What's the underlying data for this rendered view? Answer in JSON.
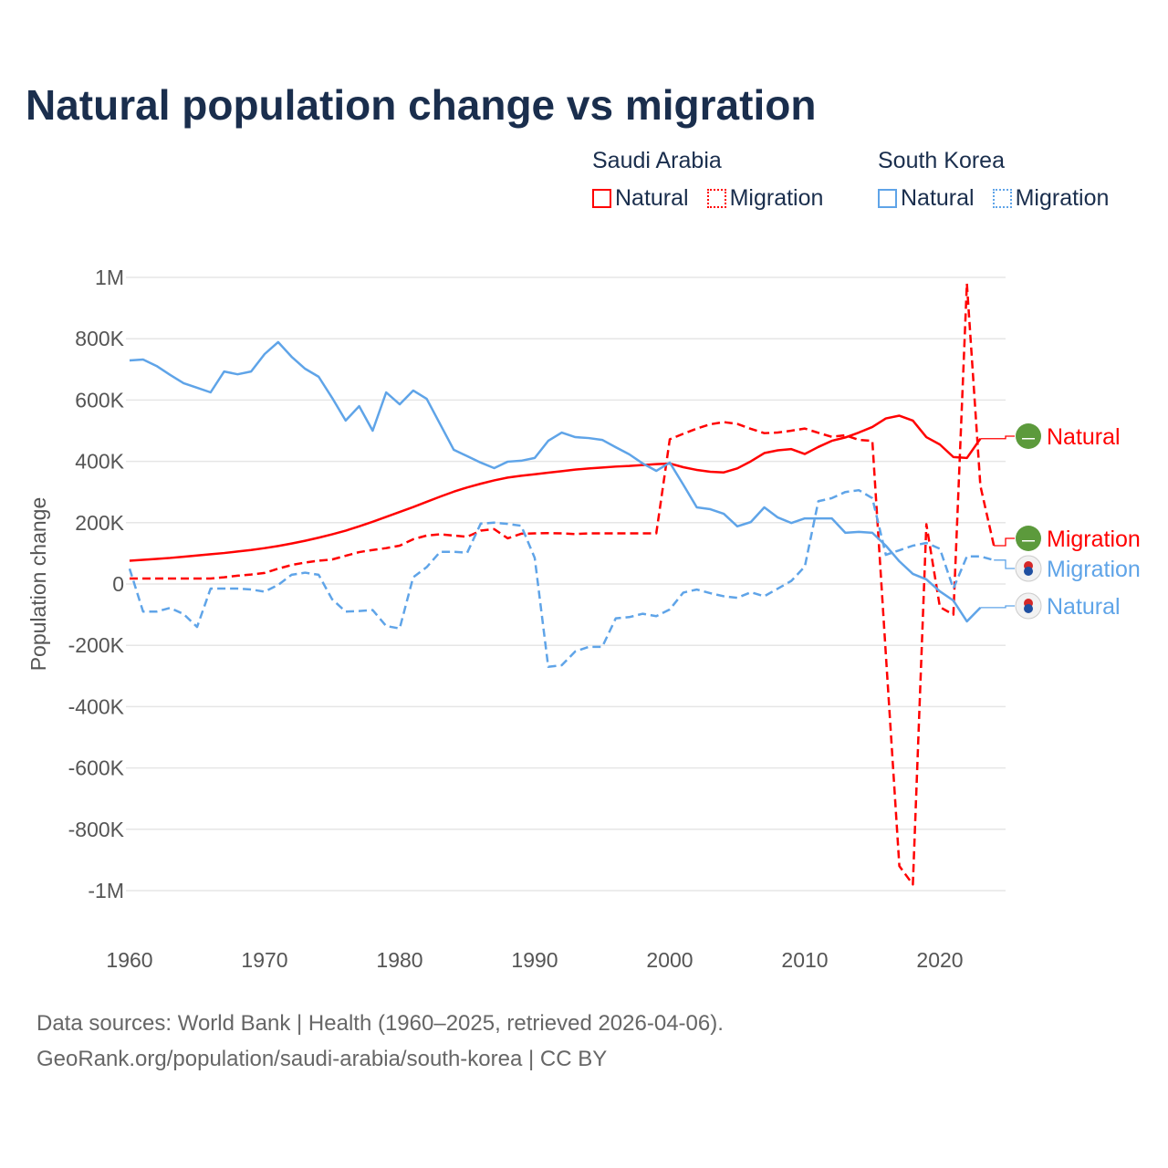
{
  "title": "Natural population change vs migration",
  "legend": {
    "groups": [
      {
        "name": "Saudi Arabia",
        "color": "#ff0000",
        "items": [
          "Natural",
          "Migration"
        ]
      },
      {
        "name": "South Korea",
        "color": "#5fa4e8",
        "items": [
          "Natural",
          "Migration"
        ]
      }
    ]
  },
  "footer": {
    "line1": "Data sources: World Bank | Health (1960–2025, retrieved 2026-04-06).",
    "line2": "GeoRank.org/population/saudi-arabia/south-korea | CC BY"
  },
  "chart_data": {
    "type": "line",
    "title": "Natural population change vs migration",
    "xlabel": "",
    "ylabel": "Population change",
    "xlim": [
      1960,
      2025
    ],
    "ylim": [
      -1000000,
      1000000
    ],
    "x_ticks": [
      1960,
      1970,
      1980,
      1990,
      2000,
      2010,
      2020
    ],
    "x_tick_labels": [
      "1960",
      "1970",
      "1980",
      "1990",
      "2000",
      "2010",
      "2020"
    ],
    "y_ticks": [
      1000000,
      800000,
      600000,
      400000,
      200000,
      0,
      -200000,
      -400000,
      -600000,
      -800000,
      -1000000
    ],
    "y_tick_labels": [
      "1M",
      "800K",
      "600K",
      "400K",
      "200K",
      "0",
      "-200K",
      "-400K",
      "-600K",
      "-800K",
      "-1M"
    ],
    "grid": true,
    "series": [
      {
        "name": "Saudi Arabia Natural",
        "label": "Natural",
        "color": "#ff0000",
        "dash": false,
        "start": 1960,
        "values": [
          76,
          79,
          82,
          85,
          89,
          93,
          97,
          101,
          106,
          111,
          117,
          124,
          132,
          141,
          151,
          162,
          174,
          188,
          203,
          219,
          235,
          251,
          268,
          285,
          301,
          315,
          327,
          338,
          347,
          353,
          358,
          363,
          368,
          373,
          377,
          380,
          383,
          385,
          388,
          391,
          393,
          381,
          372,
          366,
          364,
          377,
          400,
          427,
          436,
          440,
          424,
          447,
          467,
          478,
          494,
          512,
          540,
          549,
          533,
          479,
          455,
          414,
          411,
          474
        ]
      },
      {
        "name": "Saudi Arabia Migration",
        "label": "Migration",
        "color": "#ff0000",
        "dash": true,
        "start": 1960,
        "values": [
          18,
          18,
          18,
          18,
          18,
          18,
          18,
          22,
          27,
          31,
          36,
          50,
          62,
          70,
          76,
          80,
          92,
          104,
          111,
          117,
          125,
          146,
          158,
          162,
          158,
          154,
          174,
          179,
          149,
          164,
          165,
          166,
          165,
          163,
          165,
          165,
          165,
          165,
          165,
          165,
          472,
          490,
          507,
          521,
          528,
          522,
          506,
          492,
          494,
          500,
          507,
          493,
          480,
          485,
          470,
          467,
          -230,
          -920,
          -980,
          195,
          -75,
          -100,
          980,
          320,
          125
        ]
      },
      {
        "name": "South Korea Migration",
        "label": "Migration",
        "color": "#5fa4e8",
        "dash": true,
        "start": 1960,
        "values": [
          50,
          -90,
          -90,
          -78,
          -98,
          -140,
          -15,
          -15,
          -15,
          -18,
          -25,
          -3,
          30,
          37,
          30,
          -50,
          -90,
          -88,
          -85,
          -137,
          -145,
          22,
          55,
          105,
          105,
          102,
          197,
          200,
          196,
          190,
          85,
          -270,
          -265,
          -220,
          -205,
          -205,
          -112,
          -108,
          -97,
          -105,
          -83,
          -28,
          -18,
          -30,
          -40,
          -45,
          -27,
          -40,
          -15,
          10,
          57,
          270,
          280,
          300,
          306,
          280,
          95,
          110,
          125,
          134,
          115,
          -15,
          90,
          90,
          78
        ]
      },
      {
        "name": "South Korea Natural",
        "label": "Natural",
        "color": "#5fa4e8",
        "dash": false,
        "start": 1960,
        "values": [
          729,
          732,
          711,
          682,
          655,
          640,
          625,
          693,
          684,
          693,
          750,
          789,
          741,
          702,
          676,
          607,
          533,
          580,
          500,
          625,
          586,
          631,
          604,
          521,
          438,
          417,
          396,
          378,
          399,
          402,
          411,
          467,
          494,
          479,
          476,
          470,
          446,
          423,
          393,
          369,
          396,
          324,
          250,
          244,
          229,
          188,
          202,
          250,
          217,
          199,
          214,
          214,
          214,
          167,
          170,
          167,
          125,
          74,
          33,
          15,
          -24,
          -54,
          -122,
          -77
        ]
      }
    ],
    "value_unit": "thousands"
  }
}
